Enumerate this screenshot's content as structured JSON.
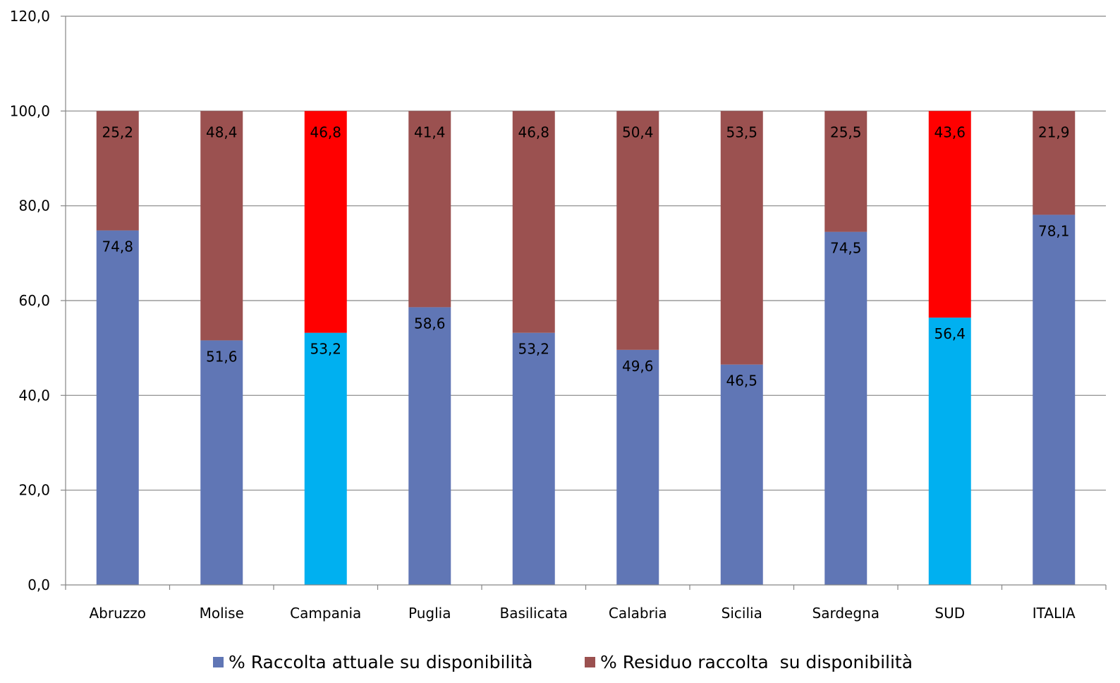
{
  "chart_data": {
    "type": "bar",
    "stacked": true,
    "categories": [
      "Abruzzo",
      "Molise",
      "Campania",
      "Puglia",
      "Basilicata",
      "Calabria",
      "Sicilia",
      "Sardegna",
      "SUD",
      "ITALIA"
    ],
    "series": [
      {
        "name": "% Raccolta attuale su disponibilità",
        "values": [
          74.8,
          51.6,
          53.2,
          58.6,
          53.2,
          49.6,
          46.5,
          74.5,
          56.4,
          78.1
        ],
        "labels": [
          "74,8",
          "51,6",
          "53,2",
          "58,6",
          "53,2",
          "49,6",
          "46,5",
          "74,5",
          "56,4",
          "78,1"
        ],
        "color": "#6076b5",
        "highlight_color": "#00b0f0",
        "highlight_categories": [
          "Campania",
          "SUD"
        ]
      },
      {
        "name": "% Residuo raccolta  su disponibilità",
        "values": [
          25.2,
          48.4,
          46.8,
          41.4,
          46.8,
          50.4,
          53.5,
          25.5,
          43.6,
          21.9
        ],
        "labels": [
          "25,2",
          "48,4",
          "46,8",
          "41,4",
          "46,8",
          "50,4",
          "53,5",
          "25,5",
          "43,6",
          "21,9"
        ],
        "color": "#9b5150",
        "highlight_color": "#ff0000",
        "highlight_categories": [
          "Campania",
          "SUD"
        ]
      }
    ],
    "ylim": [
      0,
      120
    ],
    "y_ticks": [
      0,
      20,
      40,
      60,
      80,
      100,
      120
    ],
    "y_tick_labels": [
      "0,0",
      "20,0",
      "40,0",
      "60,0",
      "80,0",
      "100,0",
      "120,0"
    ],
    "grid": true,
    "gridline_color": "#868686",
    "legend_position": "bottom",
    "title": "",
    "xlabel": "",
    "ylabel": ""
  }
}
